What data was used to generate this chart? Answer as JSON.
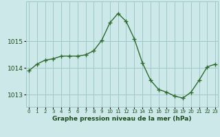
{
  "x": [
    0,
    1,
    2,
    3,
    4,
    5,
    6,
    7,
    8,
    9,
    10,
    11,
    12,
    13,
    14,
    15,
    16,
    17,
    18,
    19,
    20,
    21,
    22,
    23
  ],
  "y": [
    1013.9,
    1014.15,
    1014.3,
    1014.35,
    1014.45,
    1014.45,
    1014.45,
    1014.5,
    1014.65,
    1015.05,
    1015.7,
    1016.05,
    1015.75,
    1015.1,
    1014.2,
    1013.55,
    1013.2,
    1013.1,
    1012.95,
    1012.88,
    1013.1,
    1013.55,
    1014.05,
    1014.15
  ],
  "yticks": [
    1013,
    1014,
    1015
  ],
  "xtick_labels": [
    "0",
    "1",
    "2",
    "3",
    "4",
    "5",
    "6",
    "7",
    "8",
    "9",
    "10",
    "11",
    "12",
    "13",
    "14",
    "15",
    "16",
    "17",
    "18",
    "19",
    "20",
    "21",
    "22",
    "23"
  ],
  "xlabel": "Graphe pression niveau de la mer (hPa)",
  "line_color": "#2d6a2d",
  "marker": "+",
  "bg_color": "#cce8e8",
  "grid_color": "#9ec8c8",
  "tick_label_color": "#1a4a1a",
  "ylim": [
    1012.55,
    1016.5
  ],
  "xlim": [
    -0.3,
    23.3
  ],
  "xlabel_fontsize": 6.5,
  "ytick_fontsize": 6.5,
  "xtick_fontsize": 5.0
}
